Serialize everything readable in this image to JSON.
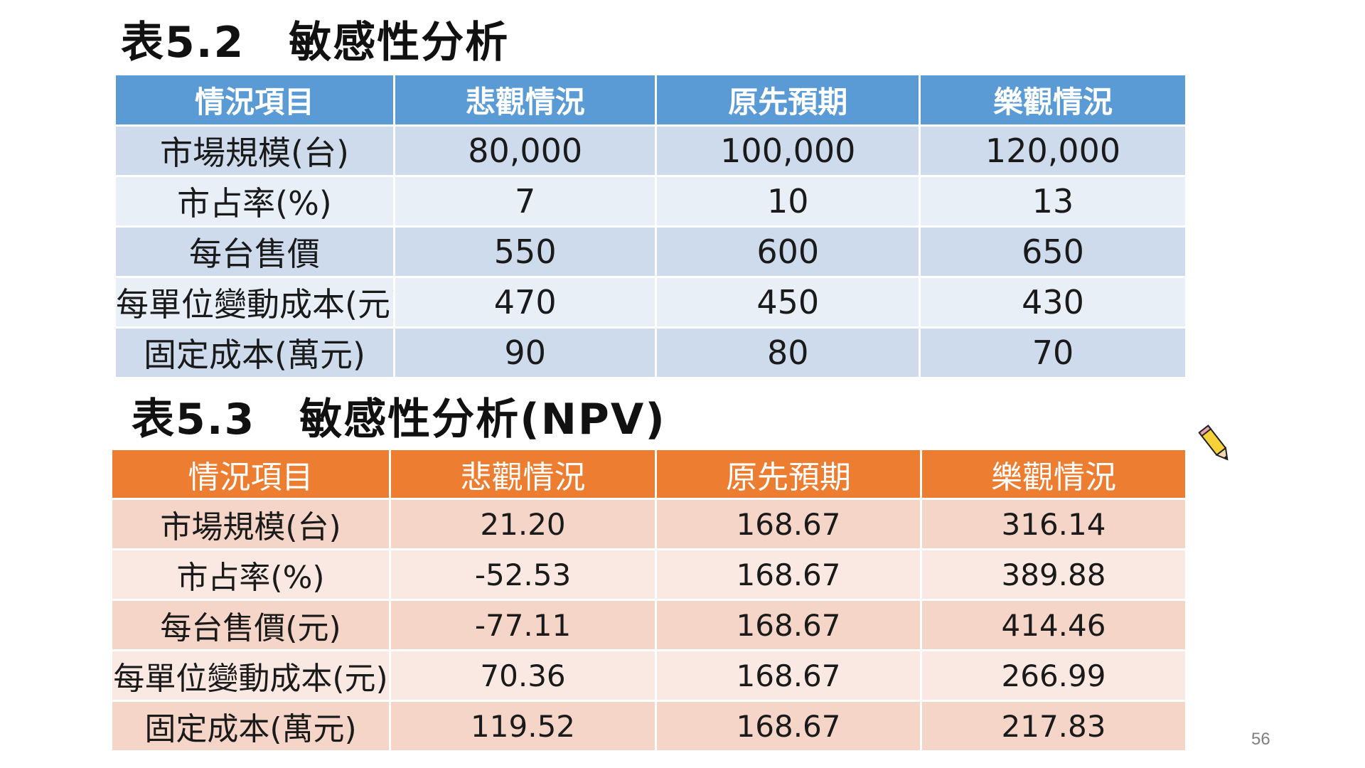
{
  "table1": {
    "title": "表5.2　敏感性分析",
    "headers": [
      "情況項目",
      "悲觀情況",
      "原先預期",
      "樂觀情況"
    ],
    "rows": [
      [
        "市場規模(台)",
        "80,000",
        "100,000",
        "120,000"
      ],
      [
        "市占率(%)",
        "7",
        "10",
        "13"
      ],
      [
        "每台售價",
        "550",
        "600",
        "650"
      ],
      [
        "每單位變動成本(元)",
        "470",
        "450",
        "430"
      ],
      [
        "固定成本(萬元)",
        "90",
        "80",
        "70"
      ]
    ]
  },
  "table2": {
    "title": "表5.3　敏感性分析(NPV)",
    "headers": [
      "情況項目",
      "悲觀情況",
      "原先預期",
      "樂觀情況"
    ],
    "rows": [
      [
        "市場規模(台)",
        "21.20",
        "168.67",
        "316.14"
      ],
      [
        "市占率(%)",
        "-52.53",
        "168.67",
        "389.88"
      ],
      [
        "每台售價(元)",
        "-77.11",
        "168.67",
        "414.46"
      ],
      [
        "每單位變動成本(元)",
        "70.36",
        "168.67",
        "266.99"
      ],
      [
        "固定成本(萬元)",
        "119.52",
        "168.67",
        "217.83"
      ]
    ]
  },
  "page_number": "56",
  "colors": {
    "blue_header": "#5b9bd5",
    "blue_row_dark": "#cedbec",
    "blue_row_light": "#e9eff7",
    "orange_header": "#ed7d31",
    "orange_row_dark": "#f4d5c8",
    "orange_row_light": "#fae9e3"
  },
  "icons": {
    "cursor": "pencil-icon"
  }
}
